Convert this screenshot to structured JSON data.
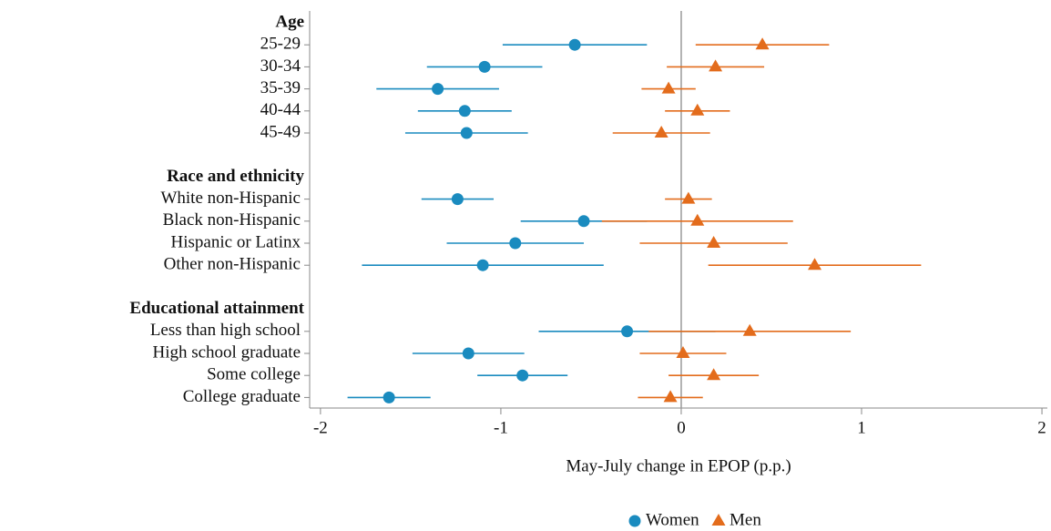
{
  "chart_data": {
    "type": "dot-errorbar",
    "xlabel": "May-July change in EPOP (p.p.)",
    "xlim": [
      -2.06,
      2.03
    ],
    "xticks": [
      -2,
      -1,
      0,
      1,
      2
    ],
    "vline": 0,
    "groups": [
      {
        "name": "Age",
        "categories": [
          "25-29",
          "30-34",
          "35-39",
          "40-44",
          "45-49"
        ]
      },
      {
        "name": "Race and ethnicity",
        "categories": [
          "White non-Hispanic",
          "Black non-Hispanic",
          "Hispanic or Latinx",
          "Other non-Hispanic"
        ]
      },
      {
        "name": "Educational attainment",
        "categories": [
          "Less than high school",
          "High school graduate",
          "Some college",
          "College graduate"
        ]
      }
    ],
    "series": [
      {
        "name": "Women",
        "color": "#1a8bbf",
        "marker": "circle",
        "values": [
          -0.59,
          -1.09,
          -1.35,
          -1.2,
          -1.19,
          -1.24,
          -0.54,
          -0.92,
          -1.1,
          -0.3,
          -1.18,
          -0.88,
          -1.62
        ],
        "errors": [
          0.4,
          0.32,
          0.34,
          0.26,
          0.34,
          0.2,
          0.35,
          0.38,
          0.67,
          0.49,
          0.31,
          0.25,
          0.23
        ]
      },
      {
        "name": "Men",
        "color": "#e36c1c",
        "marker": "triangle",
        "values": [
          0.45,
          0.19,
          -0.07,
          0.09,
          -0.11,
          0.04,
          0.09,
          0.18,
          0.74,
          0.38,
          0.01,
          0.18,
          -0.06
        ],
        "errors": [
          0.37,
          0.27,
          0.15,
          0.18,
          0.27,
          0.13,
          0.53,
          0.41,
          0.59,
          0.56,
          0.24,
          0.25,
          0.18
        ]
      }
    ]
  }
}
